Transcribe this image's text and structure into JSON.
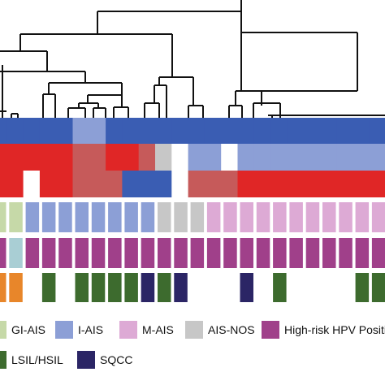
{
  "colors": {
    "blue": "#3a5db3",
    "light_blue": "#8c9fd6",
    "red": "#e02626",
    "dark_red": "#c65a5a",
    "grey": "#c7c7c7",
    "white": "#ffffff",
    "gi_ais": "#c6d9a8",
    "i_ais": "#8c9fd6",
    "m_ais": "#ddaad5",
    "ais_nos": "#c7c7c7",
    "hpv": "#a0408a",
    "light_teal": "#a9ced4",
    "orange": "#e8862a",
    "lsil_hsil": "#3d6b2e",
    "sqcc": "#2b2565",
    "dendrogram": "#111111"
  },
  "heatmap": {
    "rows": [
      [
        "B",
        "B",
        "B",
        "B",
        "B",
        "LB",
        "LB",
        "B",
        "B",
        "B",
        "B",
        "B",
        "B",
        "B",
        "B",
        "B",
        "B",
        "B",
        "B",
        "B",
        "B",
        "B",
        "B",
        "B"
      ],
      [
        "R",
        "R",
        "R",
        "R",
        "R",
        "DR",
        "DR",
        "R",
        "R",
        "DR",
        "G",
        "W",
        "LB",
        "LB",
        "W",
        "LB",
        "LB",
        "LB",
        "LB",
        "LB",
        "LB",
        "LB",
        "LB",
        "LB"
      ],
      [
        "R",
        "R",
        "W",
        "R",
        "R",
        "DR",
        "DR",
        "DR",
        "B",
        "B",
        "B",
        "W",
        "DR",
        "DR",
        "DR",
        "R",
        "R",
        "R",
        "R",
        "R",
        "R",
        "R",
        "R",
        "R"
      ]
    ]
  },
  "tracks": {
    "histology": [
      "GI",
      "GI",
      "I",
      "I",
      "I",
      "I",
      "I",
      "I",
      "I",
      "I",
      "N",
      "N",
      "N",
      "M",
      "M",
      "M",
      "M",
      "M",
      "M",
      "M",
      "M",
      "M",
      "M",
      "M"
    ],
    "hpv": [
      "H",
      "T",
      "H",
      "H",
      "H",
      "H",
      "H",
      "H",
      "H",
      "H",
      "H",
      "H",
      "H",
      "H",
      "H",
      "H",
      "H",
      "H",
      "H",
      "H",
      "H",
      "H",
      "H",
      "H"
    ],
    "lesion": [
      "O",
      "O",
      "E",
      "L",
      "E",
      "L",
      "L",
      "L",
      "L",
      "S",
      "L",
      "S",
      "E",
      "E",
      "E",
      "S",
      "E",
      "L",
      "E",
      "E",
      "E",
      "E",
      "L",
      "L"
    ]
  },
  "legend": [
    {
      "key": "gi-ais",
      "label": "GI-AIS",
      "color_key": "gi_ais"
    },
    {
      "key": "i-ais",
      "label": "I-AIS",
      "color_key": "i_ais"
    },
    {
      "key": "m-ais",
      "label": "M-AIS",
      "color_key": "m_ais"
    },
    {
      "key": "ais-nos",
      "label": "AIS-NOS",
      "color_key": "ais_nos"
    },
    {
      "key": "high-risk-hpv",
      "label": "High-risk HPV Positi",
      "color_key": "hpv"
    },
    {
      "key": "lsil-hsil",
      "label": "LSIL/HSIL",
      "color_key": "lsil_hsil"
    },
    {
      "key": "sqcc",
      "label": "SQCC",
      "color_key": "sqcc"
    }
  ]
}
